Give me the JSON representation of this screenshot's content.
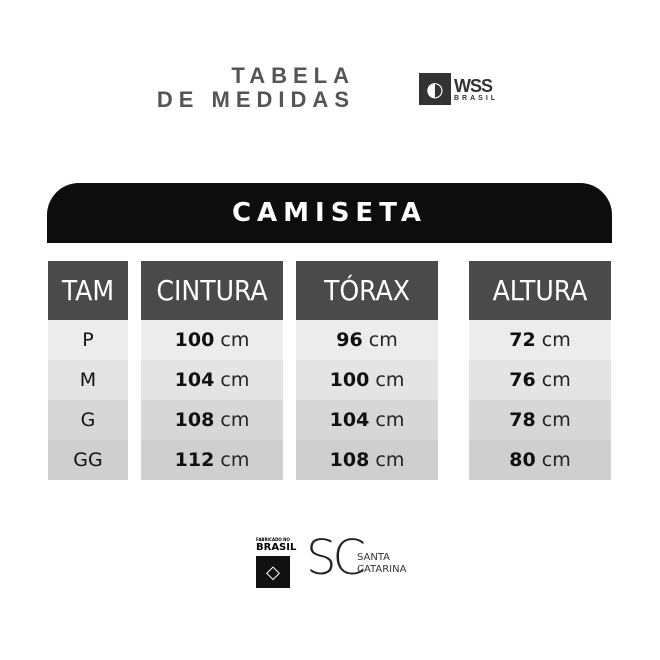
{
  "header": {
    "title_line1": "TABELA",
    "title_line2": "DE MEDIDAS"
  },
  "brand": {
    "name": "WSS",
    "sub": "BRASIL",
    "icon": "wave-icon"
  },
  "banner": "CAMISETA",
  "table": {
    "columns": [
      "TAM",
      "CINTURA",
      "TÓRAX",
      "ALTURA"
    ],
    "unit": "cm",
    "rows": [
      {
        "size": "P",
        "cintura": "100",
        "torax": "96",
        "altura": "72"
      },
      {
        "size": "M",
        "cintura": "104",
        "torax": "100",
        "altura": "76"
      },
      {
        "size": "G",
        "cintura": "108",
        "torax": "104",
        "altura": "78"
      },
      {
        "size": "GG",
        "cintura": "112",
        "torax": "108",
        "altura": "80"
      }
    ]
  },
  "footer": {
    "made_small": "FABRICADO NO",
    "made_large": "BRASIL",
    "sc_logo": "SC",
    "sc_line1": "SANTA",
    "sc_line2": "CATARINA"
  }
}
